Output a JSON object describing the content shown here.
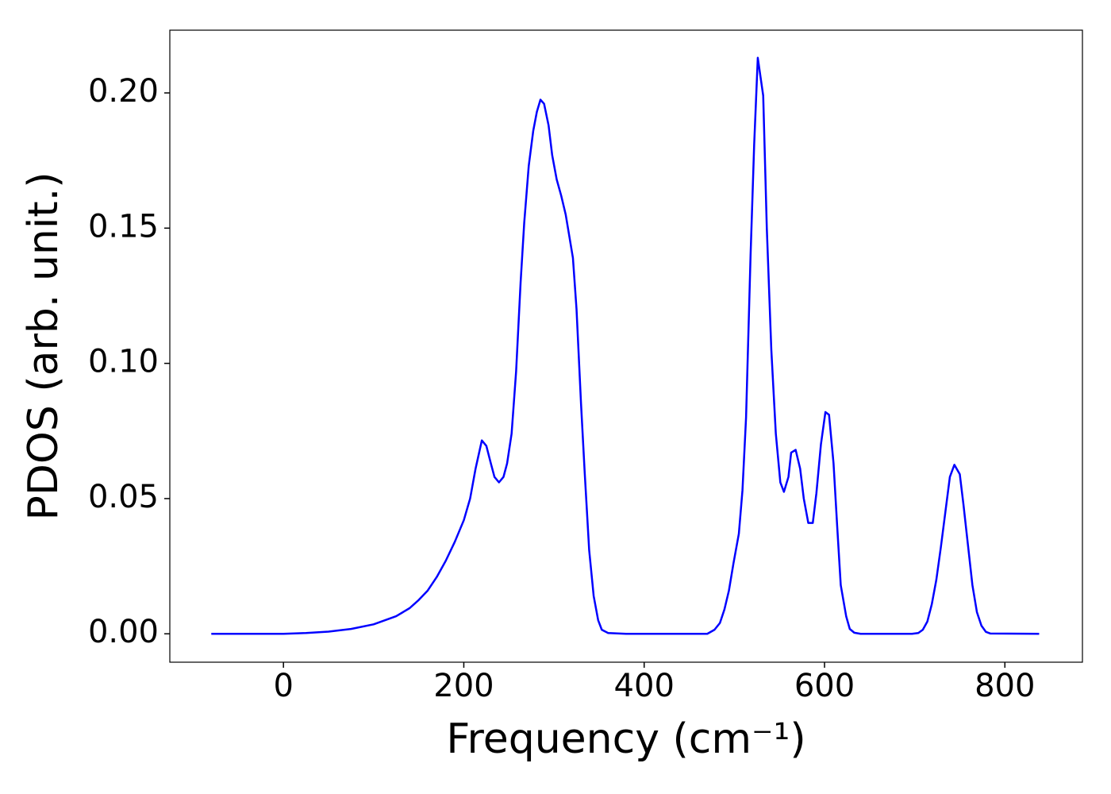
{
  "chart_data": {
    "type": "line",
    "xlabel": "Frequency (cm⁻¹)",
    "ylabel": "PDOS (arb. unit.)",
    "x": [
      -80,
      -40,
      0,
      25,
      50,
      75,
      100,
      125,
      140,
      150,
      160,
      170,
      180,
      190,
      200,
      207,
      213,
      220,
      225,
      230,
      234,
      239,
      244,
      248,
      253,
      258,
      263,
      267,
      272,
      277,
      281,
      285,
      289,
      294,
      298,
      303,
      308,
      313,
      316,
      321,
      325,
      330,
      334,
      339,
      344,
      349,
      353,
      360,
      380,
      470,
      478,
      484,
      489,
      494,
      499,
      505,
      509,
      513,
      518,
      522,
      526,
      532,
      536,
      541,
      546,
      551,
      555,
      560,
      563,
      568,
      573,
      577,
      582,
      587,
      591,
      596,
      601,
      605,
      610,
      614,
      618,
      624,
      628,
      633,
      640,
      697,
      704,
      709,
      714,
      719,
      724,
      729,
      734,
      739,
      744,
      750,
      754,
      759,
      764,
      769,
      774,
      779,
      784,
      838
    ],
    "series": [
      {
        "name": "PDOS",
        "color": "#0000ff",
        "values": [
          0,
          0,
          0,
          0.0003,
          0.0008,
          0.0018,
          0.0035,
          0.0065,
          0.0095,
          0.0125,
          0.016,
          0.021,
          0.027,
          0.034,
          0.042,
          0.05,
          0.061,
          0.0715,
          0.0695,
          0.063,
          0.058,
          0.056,
          0.058,
          0.063,
          0.074,
          0.097,
          0.13,
          0.152,
          0.173,
          0.186,
          0.193,
          0.1975,
          0.196,
          0.188,
          0.177,
          0.168,
          0.162,
          0.155,
          0.149,
          0.139,
          0.12,
          0.085,
          0.06,
          0.031,
          0.014,
          0.005,
          0.0015,
          0.0003,
          0,
          0,
          0.0015,
          0.004,
          0.009,
          0.016,
          0.026,
          0.037,
          0.053,
          0.08,
          0.14,
          0.181,
          0.213,
          0.199,
          0.15,
          0.105,
          0.074,
          0.056,
          0.0525,
          0.058,
          0.067,
          0.068,
          0.061,
          0.05,
          0.041,
          0.041,
          0.052,
          0.07,
          0.082,
          0.081,
          0.063,
          0.04,
          0.018,
          0.0065,
          0.0018,
          0.0004,
          0,
          0,
          0.0003,
          0.0015,
          0.0045,
          0.011,
          0.02,
          0.032,
          0.045,
          0.058,
          0.0625,
          0.059,
          0.048,
          0.033,
          0.018,
          0.008,
          0.003,
          0.0007,
          0.0001,
          0
        ]
      }
    ],
    "xlim": [
      -126,
      886
    ],
    "ylim": [
      -0.0105,
      0.2232
    ],
    "xticks": [
      0,
      200,
      400,
      600,
      800
    ],
    "yticks": [
      {
        "value": 0,
        "label": "0.00"
      },
      {
        "value": 0.05,
        "label": "0.05"
      },
      {
        "value": 0.1,
        "label": "0.10"
      },
      {
        "value": 0.15,
        "label": "0.15"
      },
      {
        "value": 0.2,
        "label": "0.20"
      }
    ]
  }
}
